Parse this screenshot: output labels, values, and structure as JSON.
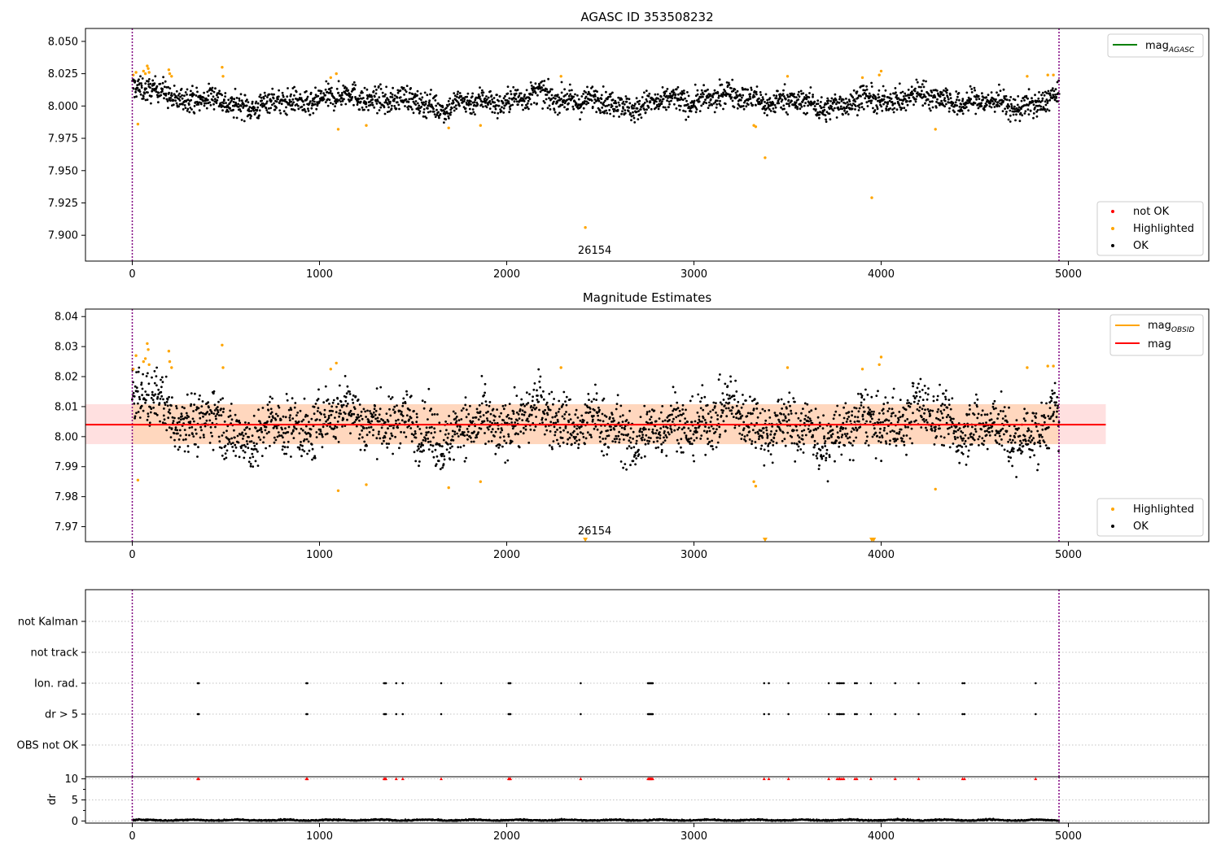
{
  "figure": {
    "background": "#ffffff"
  },
  "chart_data": [
    {
      "id": "agasc_panel",
      "type": "scatter",
      "title": "AGASC ID 353508232",
      "xlim": [
        -250,
        5750
      ],
      "ylim": [
        7.88,
        8.06
      ],
      "xticks": [
        0,
        1000,
        2000,
        3000,
        4000,
        5000
      ],
      "yticks": [
        7.9,
        7.925,
        7.95,
        7.975,
        8.0,
        8.025,
        8.05
      ],
      "ytick_labels": [
        "7.900",
        "7.925",
        "7.950",
        "7.975",
        "8.000",
        "8.025",
        "8.050"
      ],
      "obs_boundaries": [
        0,
        4950
      ],
      "obs_label": {
        "text": "26154",
        "x": 2470
      },
      "legend_upper": [
        {
          "label": "mag",
          "sub": "AGASC",
          "color": "#008000",
          "style": "line"
        }
      ],
      "legend_lower": [
        {
          "label": "not OK",
          "color": "#ff0000",
          "style": "dot"
        },
        {
          "label": "Highlighted",
          "color": "#ffa500",
          "style": "dot"
        },
        {
          "label": "OK",
          "color": "#000000",
          "style": "dot"
        }
      ],
      "series": [
        {
          "name": "OK",
          "color": "#000000",
          "x_range": [
            0,
            4950
          ],
          "center": 8.004,
          "spread": 0.0095,
          "n": 2600
        },
        {
          "name": "Highlighted",
          "color": "#ffa500",
          "points": [
            [
              5,
              8.024
            ],
            [
              20,
              8.026
            ],
            [
              30,
              7.986
            ],
            [
              60,
              8.027
            ],
            [
              70,
              8.025
            ],
            [
              80,
              8.031
            ],
            [
              85,
              8.029
            ],
            [
              90,
              8.026
            ],
            [
              195,
              8.028
            ],
            [
              200,
              8.025
            ],
            [
              210,
              8.023
            ],
            [
              480,
              8.03
            ],
            [
              485,
              8.023
            ],
            [
              1060,
              8.022
            ],
            [
              1090,
              8.025
            ],
            [
              1100,
              7.982
            ],
            [
              1250,
              7.985
            ],
            [
              1690,
              7.983
            ],
            [
              1860,
              7.985
            ],
            [
              2290,
              8.023
            ],
            [
              2420,
              7.906
            ],
            [
              3320,
              7.985
            ],
            [
              3330,
              7.984
            ],
            [
              3380,
              7.96
            ],
            [
              3500,
              8.023
            ],
            [
              3900,
              8.022
            ],
            [
              3950,
              7.929
            ],
            [
              3990,
              8.024
            ],
            [
              4000,
              8.027
            ],
            [
              4290,
              7.982
            ],
            [
              4780,
              8.023
            ],
            [
              4890,
              8.024
            ],
            [
              4920,
              8.024
            ]
          ]
        }
      ]
    },
    {
      "id": "estimates_panel",
      "type": "scatter",
      "title": "Magnitude Estimates",
      "xlim": [
        -250,
        5750
      ],
      "ylim": [
        7.965,
        8.0425
      ],
      "xticks": [
        0,
        1000,
        2000,
        3000,
        4000,
        5000
      ],
      "yticks": [
        7.97,
        7.98,
        7.99,
        8.0,
        8.01,
        8.02,
        8.03,
        8.04
      ],
      "ytick_labels": [
        "7.97",
        "7.98",
        "7.99",
        "8.00",
        "8.01",
        "8.02",
        "8.03",
        "8.04"
      ],
      "obs_boundaries": [
        0,
        4950
      ],
      "obs_label": {
        "text": "26154",
        "x": 2470
      },
      "mag_line": {
        "value": 8.004,
        "x_range": [
          -250,
          5200
        ],
        "color": "#ff0000"
      },
      "mag_band": {
        "low": 7.9975,
        "high": 8.0108,
        "x_range": [
          -250,
          5200
        ],
        "color": "#ff0000"
      },
      "obsid_band": {
        "low": 7.9975,
        "high": 8.0108,
        "x_range": [
          0,
          4950
        ],
        "color": "#ffa500"
      },
      "legend_upper": [
        {
          "label": "mag",
          "sub": "OBSID",
          "color": "#ffa500",
          "style": "line"
        },
        {
          "label": "mag",
          "sub": "",
          "color": "#ff0000",
          "style": "line"
        }
      ],
      "legend_lower": [
        {
          "label": "Highlighted",
          "color": "#ffa500",
          "style": "dot"
        },
        {
          "label": "OK",
          "color": "#000000",
          "style": "dot"
        }
      ],
      "off_scale_markers": [
        [
          2420,
          7.9655
        ],
        [
          3380,
          7.9655
        ],
        [
          3950,
          7.9655
        ],
        [
          3960,
          7.9655
        ]
      ],
      "series": [
        {
          "name": "OK",
          "color": "#000000",
          "x_range": [
            0,
            4950
          ],
          "center": 8.004,
          "spread": 0.0095,
          "n": 2600
        },
        {
          "name": "Highlighted",
          "color": "#ffa500",
          "points": [
            [
              5,
              8.0225
            ],
            [
              20,
              8.027
            ],
            [
              30,
              7.9855
            ],
            [
              60,
              8.025
            ],
            [
              70,
              8.026
            ],
            [
              80,
              8.031
            ],
            [
              85,
              8.029
            ],
            [
              90,
              8.024
            ],
            [
              195,
              8.0285
            ],
            [
              200,
              8.025
            ],
            [
              210,
              8.023
            ],
            [
              480,
              8.0305
            ],
            [
              485,
              8.023
            ],
            [
              1060,
              8.0225
            ],
            [
              1090,
              8.0245
            ],
            [
              1100,
              7.982
            ],
            [
              1250,
              7.984
            ],
            [
              1690,
              7.983
            ],
            [
              1860,
              7.985
            ],
            [
              2290,
              8.023
            ],
            [
              3320,
              7.985
            ],
            [
              3330,
              7.9835
            ],
            [
              3500,
              8.023
            ],
            [
              3900,
              8.0225
            ],
            [
              3990,
              8.024
            ],
            [
              4000,
              8.0265
            ],
            [
              4290,
              7.9825
            ],
            [
              4780,
              8.023
            ],
            [
              4890,
              8.0235
            ],
            [
              4920,
              8.0235
            ]
          ]
        }
      ]
    },
    {
      "id": "flags_panel",
      "type": "scatter",
      "xlim": [
        -250,
        5750
      ],
      "categories": [
        "not Kalman",
        "not track",
        "Ion. rad.",
        "dr > 5",
        "OBS not OK"
      ],
      "obs_boundaries": [
        0,
        4950
      ],
      "flag_times": [
        350,
        355,
        930,
        935,
        1345,
        1350,
        1355,
        1410,
        1445,
        1650,
        2010,
        2015,
        2020,
        2395,
        2755,
        2760,
        2765,
        2770,
        2775,
        2780,
        3375,
        3400,
        3505,
        3720,
        3765,
        3775,
        3780,
        3790,
        3800,
        3860,
        3870,
        3945,
        4075,
        4200,
        4435,
        4445,
        4825
      ],
      "series": [
        {
          "name": "Ion. rad.",
          "values_from": "flag_times"
        },
        {
          "name": "dr > 5",
          "values_from": "flag_times"
        }
      ]
    },
    {
      "id": "dr_panel",
      "type": "scatter",
      "ylabel": "dr",
      "xlim": [
        -250,
        5750
      ],
      "ylim": [
        -0.5,
        10.5
      ],
      "xticks": [
        0,
        1000,
        2000,
        3000,
        4000,
        5000
      ],
      "yticks": [
        0,
        5,
        10
      ],
      "obs_boundaries": [
        0,
        4950
      ],
      "dr_baseline": {
        "x_range": [
          0,
          4950
        ],
        "center": 0.2,
        "spread": 0.15
      },
      "clipped_marker_value": 10,
      "clipped_color": "#ff0000"
    }
  ]
}
